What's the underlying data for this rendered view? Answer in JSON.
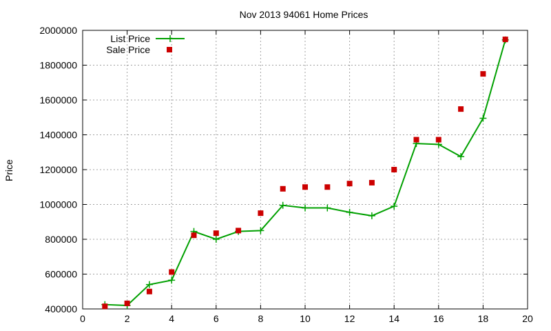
{
  "chart_data": {
    "type": "line",
    "title": "Nov 2013 94061 Home Prices",
    "xlabel": "",
    "ylabel": "Price",
    "xlim": [
      0,
      20
    ],
    "ylim": [
      400000,
      2000000
    ],
    "xticks": [
      0,
      2,
      4,
      6,
      8,
      10,
      12,
      14,
      16,
      18,
      20
    ],
    "yticks": [
      400000,
      600000,
      800000,
      1000000,
      1200000,
      1400000,
      1600000,
      1800000,
      2000000
    ],
    "grid": true,
    "legend_position": "top-left",
    "series": [
      {
        "name": "List Price",
        "style": "line-plus",
        "color": "#00a000",
        "x": [
          1,
          2,
          3,
          4,
          5,
          6,
          7,
          8,
          9,
          10,
          11,
          12,
          13,
          14,
          15,
          16,
          17,
          18,
          19
        ],
        "y": [
          425000,
          420000,
          540000,
          565000,
          845000,
          800000,
          845000,
          850000,
          995000,
          980000,
          980000,
          955000,
          935000,
          990000,
          1350000,
          1345000,
          1275000,
          1495000,
          1945000
        ]
      },
      {
        "name": "Sale Price",
        "style": "square-markers",
        "color": "#cc0000",
        "x": [
          1,
          2,
          3,
          4,
          5,
          6,
          7,
          8,
          9,
          10,
          11,
          12,
          13,
          14,
          15,
          16,
          17,
          18,
          19
        ],
        "y": [
          415000,
          432000,
          500000,
          612000,
          823000,
          835000,
          850000,
          950000,
          1090000,
          1100000,
          1100000,
          1120000,
          1125000,
          1200000,
          1372000,
          1372000,
          1548000,
          1750000,
          1948000
        ]
      }
    ]
  }
}
